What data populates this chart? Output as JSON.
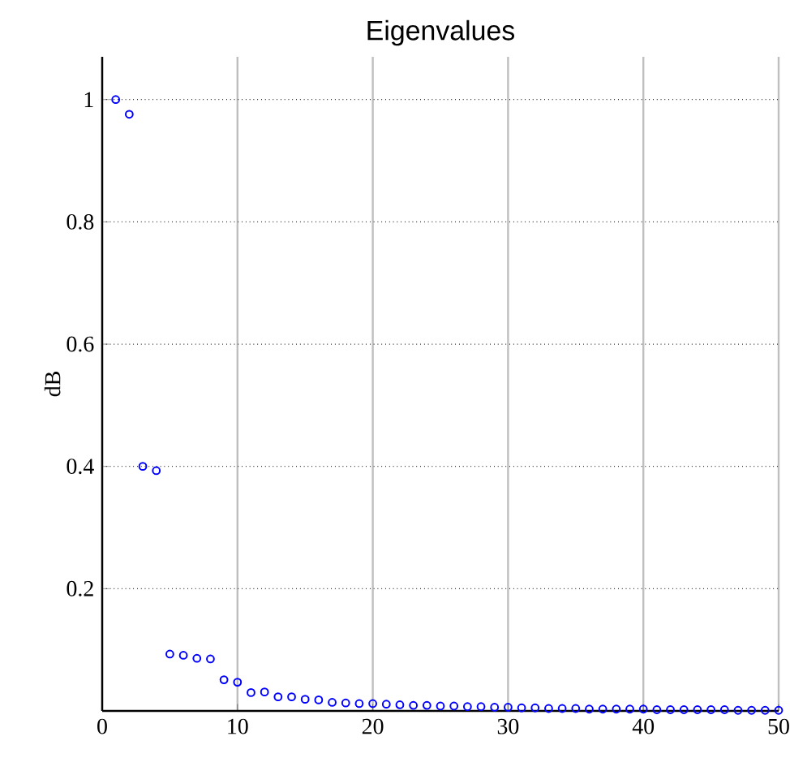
{
  "chart_data": {
    "type": "scatter",
    "title": "Eigenvalues",
    "ylabel": "dB",
    "x": [
      1,
      2,
      3,
      4,
      5,
      6,
      7,
      8,
      9,
      10,
      11,
      12,
      13,
      14,
      15,
      16,
      17,
      18,
      19,
      20,
      21,
      22,
      23,
      24,
      25,
      26,
      27,
      28,
      29,
      30,
      31,
      32,
      33,
      34,
      35,
      36,
      37,
      38,
      39,
      40,
      41,
      42,
      43,
      44,
      45,
      46,
      47,
      48,
      49,
      50
    ],
    "values": [
      1.0,
      0.976,
      0.4,
      0.393,
      0.093,
      0.091,
      0.086,
      0.085,
      0.051,
      0.047,
      0.03,
      0.031,
      0.023,
      0.023,
      0.019,
      0.018,
      0.014,
      0.013,
      0.012,
      0.012,
      0.011,
      0.01,
      0.009,
      0.009,
      0.008,
      0.008,
      0.007,
      0.007,
      0.006,
      0.006,
      0.005,
      0.005,
      0.004,
      0.004,
      0.004,
      0.003,
      0.003,
      0.003,
      0.003,
      0.003,
      0.002,
      0.002,
      0.002,
      0.002,
      0.002,
      0.002,
      0.001,
      0.001,
      0.001,
      0.001
    ],
    "color": "#0000ff",
    "marker": "circle",
    "grid": true,
    "xlim": [
      0,
      50
    ],
    "ylim": [
      0,
      1.07
    ],
    "xticks": [
      0,
      10,
      20,
      30,
      40,
      50
    ],
    "yticks": [
      0.2,
      0.4,
      0.6,
      0.8,
      1
    ]
  }
}
